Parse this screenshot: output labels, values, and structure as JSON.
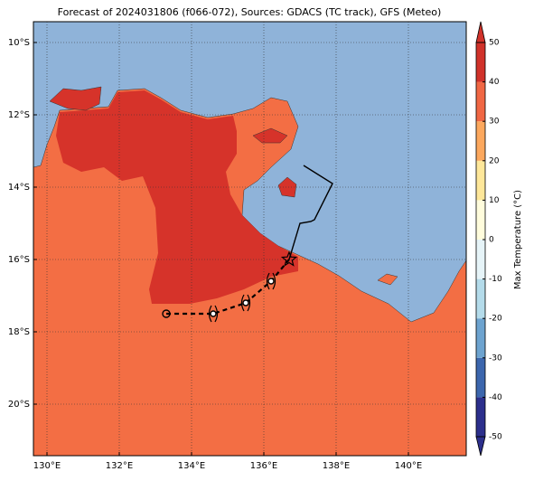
{
  "chart_data": {
    "type": "map",
    "title": "Forecast of 2024031806 (f066-072), Sources: GDACS (TC track), GFS (Meteo)",
    "xlim": [
      129.625,
      141.6
    ],
    "ylim": [
      -21.425,
      -9.425
    ],
    "xticks": [
      {
        "value": 130,
        "label": "130°E"
      },
      {
        "value": 132,
        "label": "132°E"
      },
      {
        "value": 134,
        "label": "134°E"
      },
      {
        "value": 136,
        "label": "136°E"
      },
      {
        "value": 138,
        "label": "138°E"
      },
      {
        "value": 140,
        "label": "140°E"
      }
    ],
    "yticks": [
      {
        "value": -10,
        "label": "10°S"
      },
      {
        "value": -12,
        "label": "12°S"
      },
      {
        "value": -14,
        "label": "14°S"
      },
      {
        "value": -16,
        "label": "16°S"
      },
      {
        "value": -18,
        "label": "18°S"
      },
      {
        "value": -20,
        "label": "20°S"
      }
    ],
    "grid": true,
    "track": {
      "past": {
        "lon": [
          137.1,
          137.9,
          137.4,
          137.3,
          137.0,
          136.7
        ],
        "lat": [
          -13.4,
          -13.9,
          -14.9,
          -14.95,
          -15.0,
          -16.0
        ]
      },
      "forecast": {
        "lon": [
          136.7,
          136.2,
          135.5,
          134.6,
          133.3
        ],
        "lat": [
          -16.0,
          -16.6,
          -17.2,
          -17.5,
          -17.5
        ]
      }
    },
    "colorbar": {
      "label": "Max Temperature (°C)",
      "lim": [
        -50,
        50
      ],
      "ticks": [
        -50,
        -40,
        -30,
        -20,
        -10,
        0,
        10,
        20,
        30,
        40,
        50
      ],
      "bounds": [
        -50,
        -40,
        -30,
        -20,
        -10,
        0,
        10,
        20,
        30,
        40,
        50
      ],
      "colors": [
        "#2c2f8c",
        "#3c66ad",
        "#6da3cf",
        "#b4dbea",
        "#e6f4f8",
        "#fffcdc",
        "#fee79a",
        "#fca85e",
        "#f06744",
        "#d0322a"
      ]
    }
  }
}
